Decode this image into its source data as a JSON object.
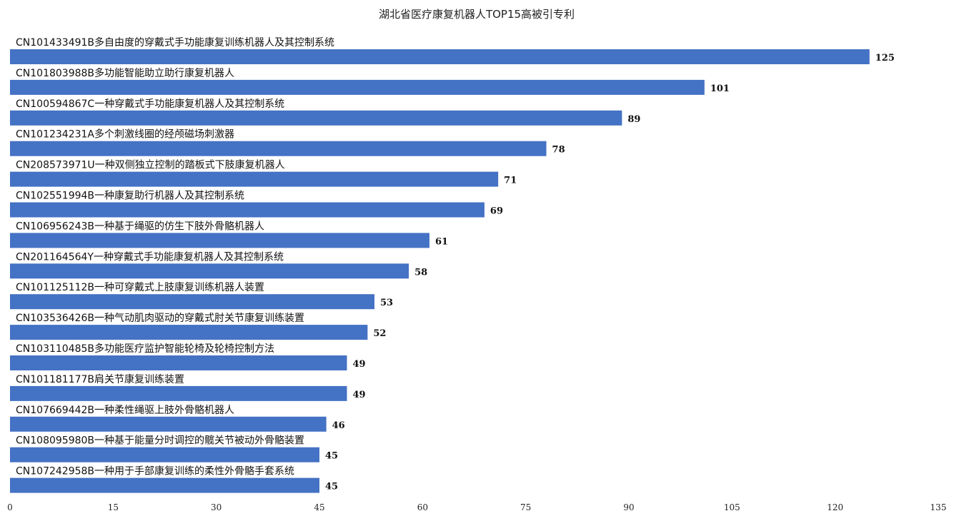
{
  "chart_data": {
    "type": "bar",
    "orientation": "horizontal",
    "title": "湖北省医疗康复机器人TOP15高被引专利",
    "categories": [
      "CN101433491B多自由度的穿戴式手功能康复训练机器人及其控制系统",
      "CN101803988B多功能智能助立助行康复机器人",
      "CN100594867C一种穿戴式手功能康复机器人及其控制系统",
      "CN101234231A多个刺激线圈的经颅磁场刺激器",
      "CN208573971U一种双侧独立控制的踏板式下肢康复机器人",
      "CN102551994B一种康复助行机器人及其控制系统",
      "CN106956243B一种基于绳驱的仿生下肢外骨骼机器人",
      "CN201164564Y一种穿戴式手功能康复机器人及其控制系统",
      "CN101125112B一种可穿戴式上肢康复训练机器人装置",
      "CN103536426B一种气动肌肉驱动的穿戴式肘关节康复训练装置",
      "CN103110485B多功能医疗监护智能轮椅及轮椅控制方法",
      "CN101181177B肩关节康复训练装置",
      "CN107669442B一种柔性绳驱上肢外骨骼机器人",
      "CN108095980B一种基于能量分时调控的髋关节被动外骨骼装置",
      "CN107242958B一种用于手部康复训练的柔性外骨骼手套系统"
    ],
    "values": [
      125,
      101,
      89,
      78,
      71,
      69,
      61,
      58,
      53,
      52,
      49,
      49,
      46,
      45,
      45
    ],
    "xlim": [
      0,
      135
    ],
    "xticks": [
      0,
      15,
      30,
      45,
      60,
      75,
      90,
      105,
      120,
      135
    ],
    "grid": false,
    "legend": "none",
    "bar_color": "#4472C4"
  }
}
